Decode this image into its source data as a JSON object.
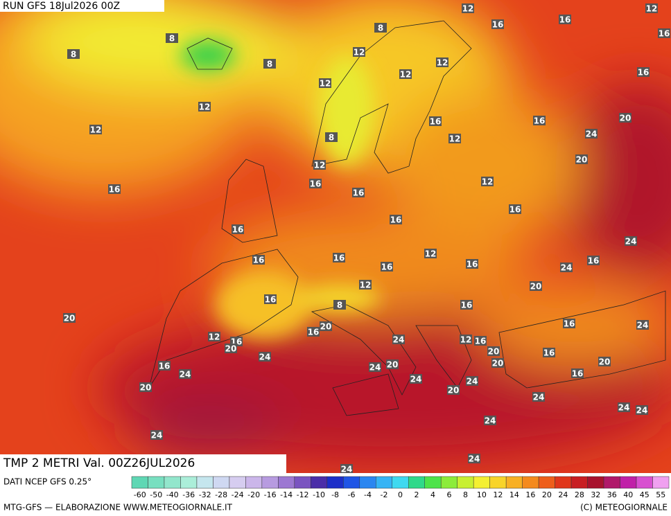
{
  "header": {
    "run": "RUN GFS 18Jul2026 00Z"
  },
  "footer": {
    "field": "TMP 2 METRI Val. 00Z26JUL2026",
    "source": "DATI NCEP GFS 0.25°",
    "credit": "MTG-GFS — ELABORAZIONE WWW.METEOGIORNALE.IT",
    "copyright": "(C) METEOGIORNALE"
  },
  "legend": {
    "labels": [
      -60,
      -50,
      -40,
      -36,
      -32,
      -28,
      -24,
      -20,
      -16,
      -14,
      -12,
      -10,
      -8,
      -6,
      -4,
      -2,
      0,
      2,
      4,
      6,
      8,
      10,
      12,
      14,
      16,
      20,
      24,
      28,
      32,
      36,
      40,
      45,
      55
    ],
    "colors": [
      "#5fd7b4",
      "#78dfc0",
      "#92e6cc",
      "#abeed9",
      "#c5e6ee",
      "#cfd8f2",
      "#d6cdf0",
      "#cbb6ea",
      "#b79be0",
      "#9c78d2",
      "#7a54c0",
      "#4b2ea8",
      "#1d2fc8",
      "#1f55e6",
      "#2a86f0",
      "#35b4f5",
      "#3fd9f0",
      "#30d98a",
      "#4ee34a",
      "#8cec3a",
      "#c8f032",
      "#f4f032",
      "#f8d42a",
      "#f8b024",
      "#f48a1e",
      "#ee5e1a",
      "#e0361a",
      "#c81e22",
      "#a8122e",
      "#b0186a",
      "#c020a8",
      "#d850d0",
      "#f0a0f0"
    ]
  },
  "map": {
    "contour_labels": [
      12,
      12,
      16,
      16,
      16,
      8,
      8,
      8,
      8,
      12,
      12,
      12,
      16,
      12,
      12,
      12,
      16,
      16,
      20,
      12,
      24,
      8,
      12,
      20,
      16,
      16,
      16,
      12,
      16,
      16,
      16,
      24,
      12,
      16,
      16,
      16,
      16,
      24,
      16,
      12,
      20,
      16,
      16,
      20,
      8,
      16,
      24,
      20,
      16,
      12,
      24,
      12,
      16,
      16,
      20,
      24,
      20,
      16,
      16,
      24,
      24,
      20,
      20,
      20,
      24,
      16,
      24,
      20,
      20,
      24,
      24,
      24,
      24,
      24,
      24,
      24
    ]
  }
}
